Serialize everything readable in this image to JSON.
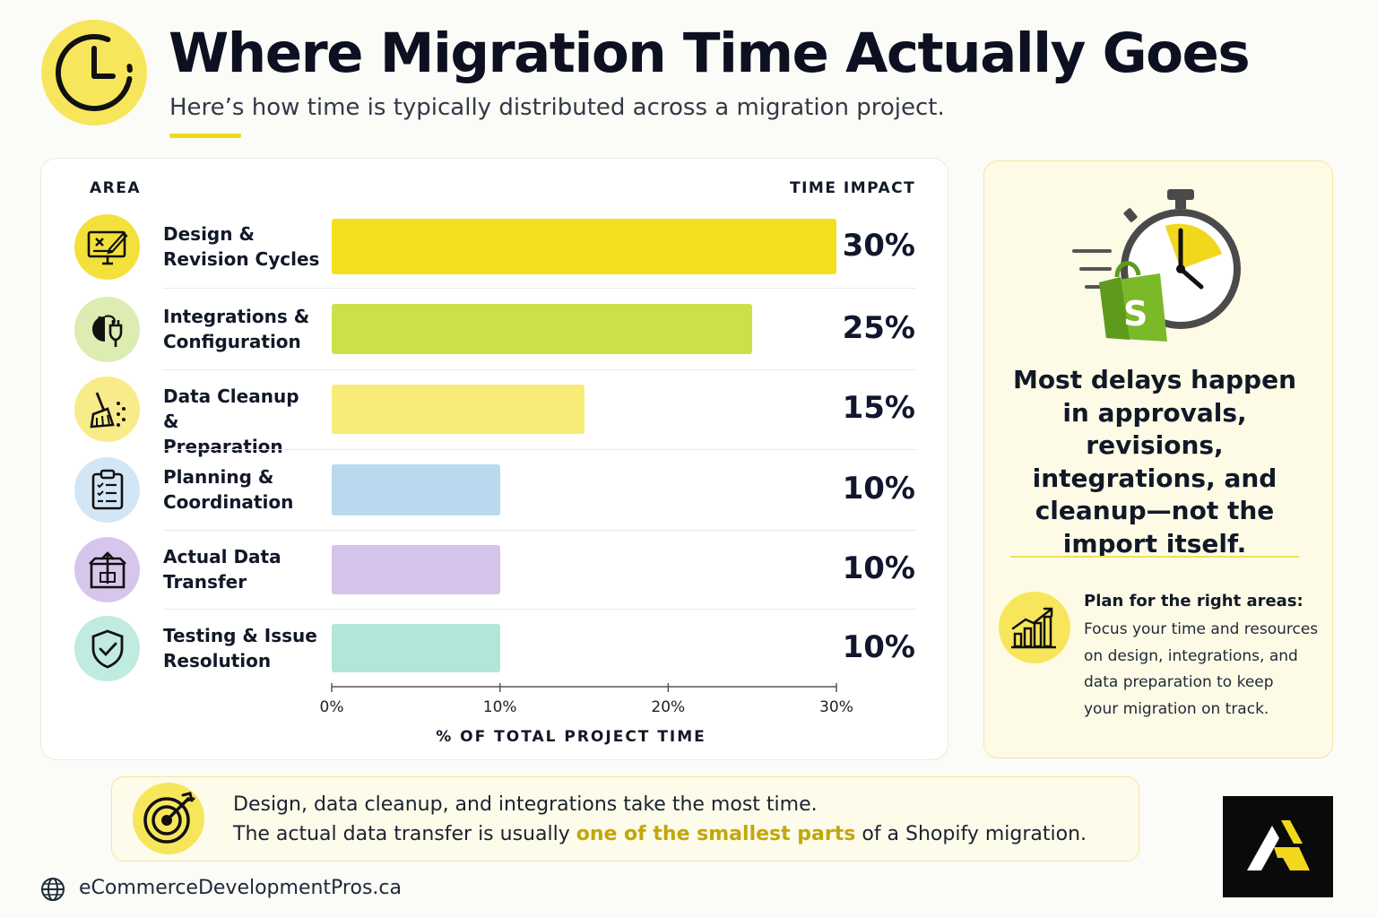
{
  "header": {
    "title": "Where Migration Time Actually Goes",
    "subtitle": "Here’s how time is typically distributed across a migration project.",
    "icon": "clock-icon"
  },
  "chart_data": {
    "type": "bar",
    "orientation": "horizontal",
    "columns": {
      "left": "AREA",
      "right": "TIME IMPACT"
    },
    "categories": [
      "Design & Revision Cycles",
      "Integrations & Configuration",
      "Data Cleanup & Preparation",
      "Planning & Coordination",
      "Actual Data Transfer",
      "Testing & Issue Resolution"
    ],
    "label_lines": [
      [
        "Design &",
        "Revision Cycles"
      ],
      [
        "Integrations &",
        "Configuration"
      ],
      [
        "Data Cleanup &",
        "Preparation"
      ],
      [
        "Planning &",
        "Coordination"
      ],
      [
        "Actual Data",
        "Transfer"
      ],
      [
        "Testing & Issue",
        "Resolution"
      ]
    ],
    "values": [
      30,
      25,
      15,
      10,
      10,
      10
    ],
    "value_labels": [
      "30%",
      "25%",
      "15%",
      "10%",
      "10%",
      "10%"
    ],
    "bar_colors": [
      "#f2e020",
      "#cde04a",
      "#f8ec78",
      "#b9d9ee",
      "#d5c3ea",
      "#b3e6da"
    ],
    "icon_bg_colors": [
      "#f4e03a",
      "#ddecb0",
      "#f8ec8a",
      "#d3e6f6",
      "#d6c6ec",
      "#c0ebe0"
    ],
    "icons": [
      "design-monitor-icon",
      "plug-integration-icon",
      "broom-cleanup-icon",
      "clipboard-checklist-icon",
      "box-upload-icon",
      "shield-check-icon"
    ],
    "xlim": [
      0,
      30
    ],
    "xticks": [
      0,
      10,
      20,
      30
    ],
    "xtick_labels": [
      "0%",
      "10%",
      "20%",
      "30%"
    ],
    "xlabel": "% OF TOTAL PROJECT TIME",
    "ylabel": "",
    "grid": false,
    "legend": "none"
  },
  "sidebar": {
    "icon": "stopwatch-shopify-icon",
    "message_lines": [
      "Most delays happen",
      "in approvals, revisions,",
      "integrations, and",
      "cleanup—not the",
      "import itself."
    ],
    "tip_icon": "growth-chart-icon",
    "tip_heading": "Plan for the right areas:",
    "tip_lines": [
      "Focus your time and resources",
      "on design, integrations, and",
      "data preparation to keep",
      "your migration on track."
    ]
  },
  "callout": {
    "icon": "target-icon",
    "line1": "Design, data cleanup, and integrations take the most time.",
    "line2_before": "The actual data transfer is usually ",
    "line2_highlight": "one of the smallest parts",
    "line2_after": " of a Shopify migration."
  },
  "footer": {
    "globe_icon": "globe-icon",
    "url": "eCommerceDevelopmentPros.ca",
    "logo": "brand-logo-icon"
  },
  "colors": {
    "accent": "#f2d81d",
    "highlight_text": "#c3a70a",
    "card_bg": "#fdfbe6",
    "title": "#0d1020"
  }
}
